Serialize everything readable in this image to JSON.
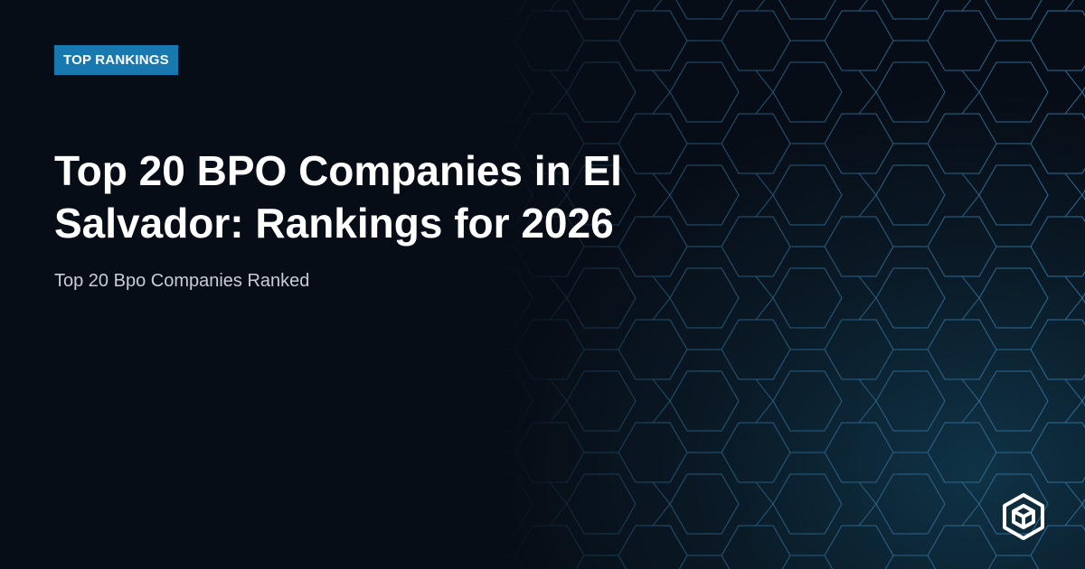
{
  "badge": "TOP RANKINGS",
  "title": "Top 20 BPO Companies in El Salvador: Rankings for 2026",
  "subtitle": "Top 20 Bpo Companies Ranked"
}
